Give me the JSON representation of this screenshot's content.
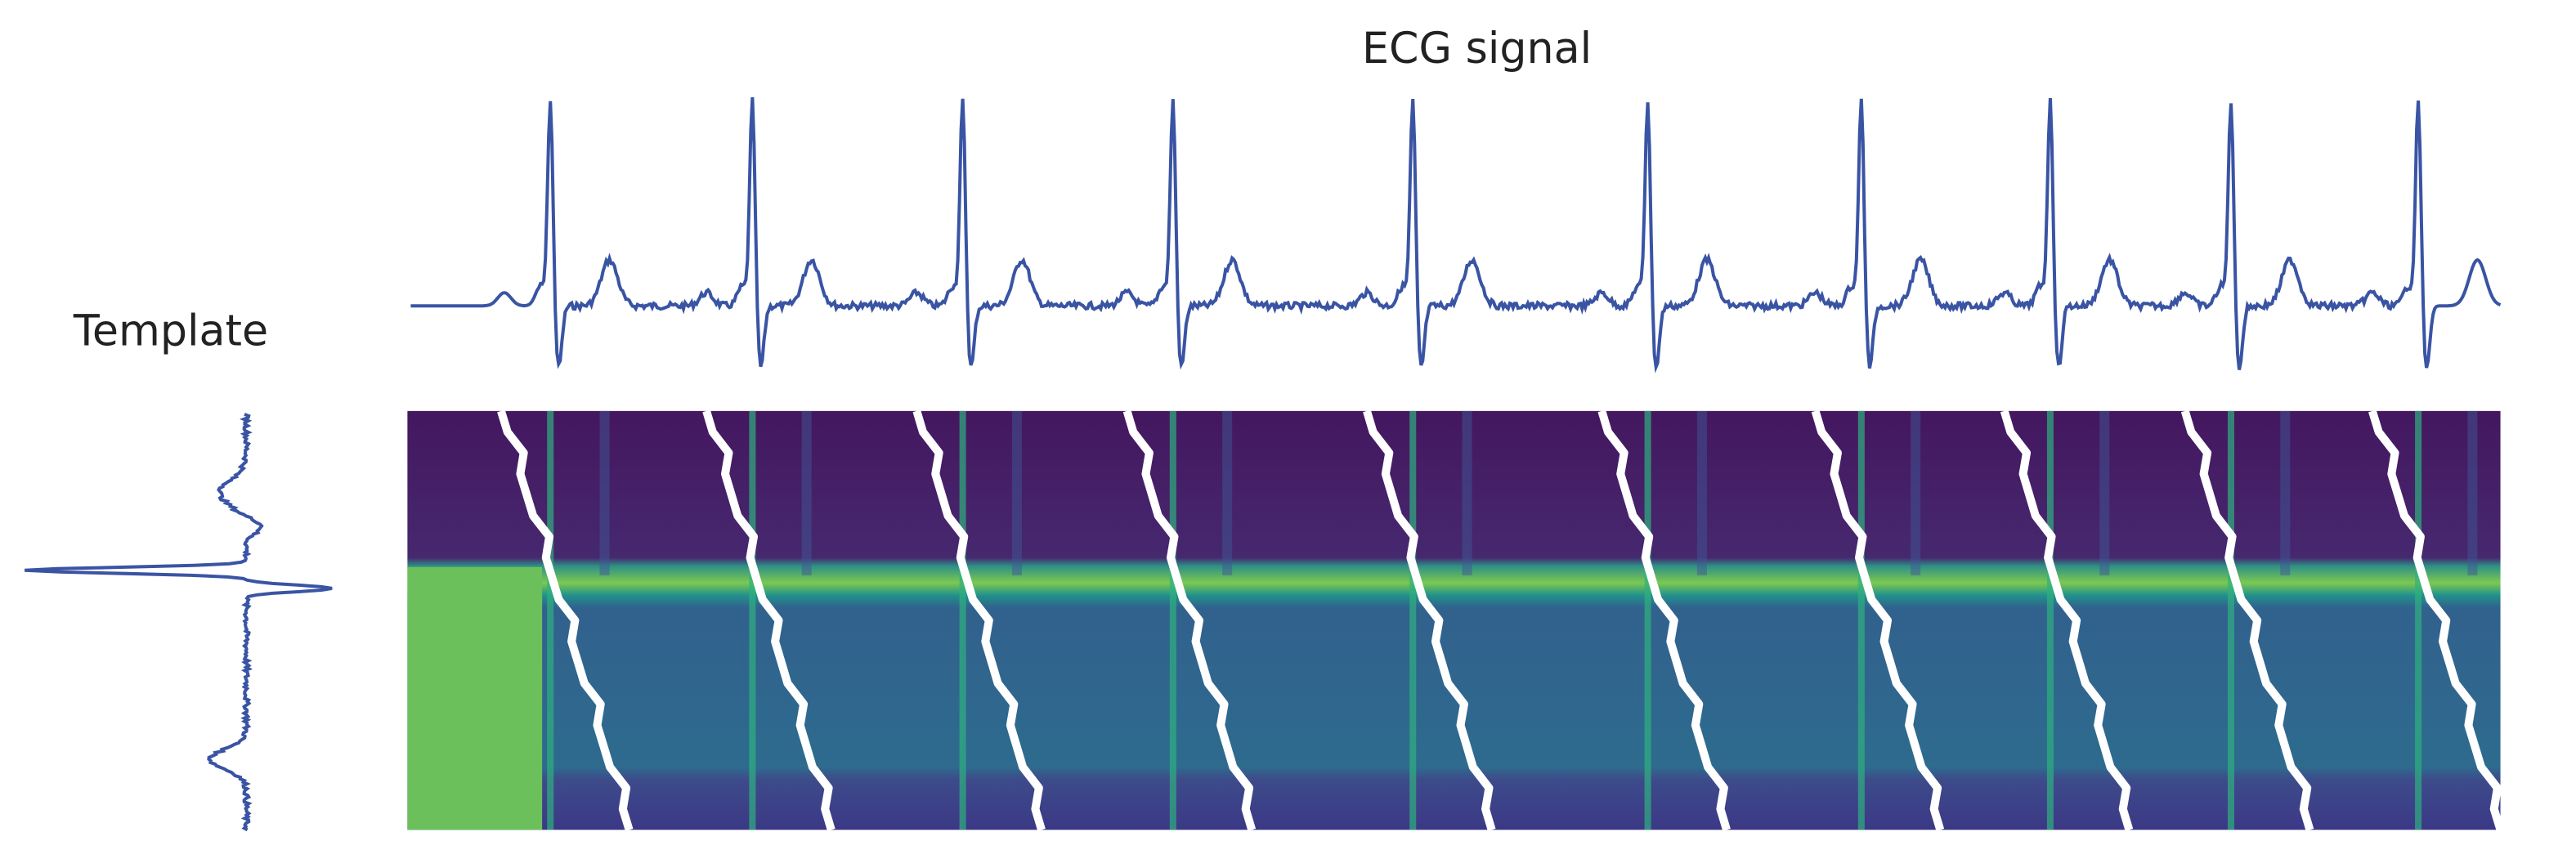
{
  "panels": {
    "signal_title": "ECG signal",
    "template_title": "Template"
  }
}
